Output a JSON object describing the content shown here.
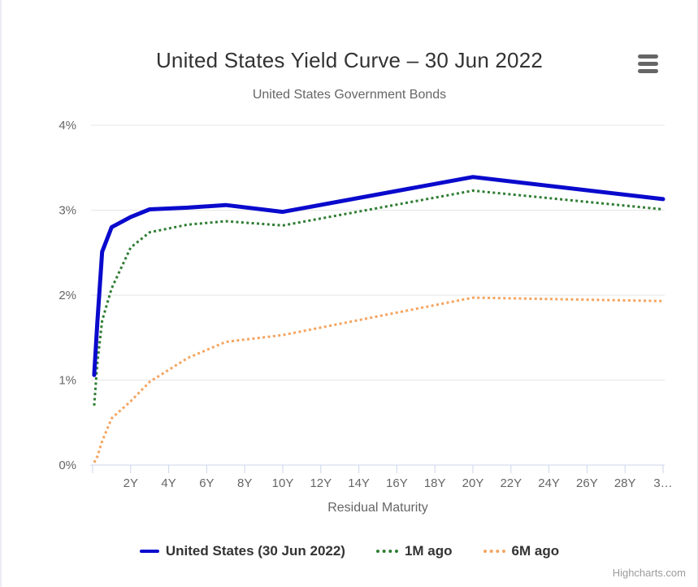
{
  "header": {
    "title": "United States Yield Curve – 30 Jun 2022",
    "subtitle": "United States Government Bonds"
  },
  "menu": {
    "icon": "hamburger-menu-icon"
  },
  "page": {
    "credits": "Highcharts.com"
  },
  "chart_data": {
    "type": "line",
    "title": "United States Yield Curve – 30 Jun 2022",
    "subtitle": "United States Government Bonds",
    "xlabel": "Residual Maturity",
    "ylabel": "",
    "xlim": [
      0,
      30.2
    ],
    "ylim": [
      0,
      4
    ],
    "grid": true,
    "legend_position": "bottom",
    "x_ticks": [
      0,
      2,
      4,
      6,
      8,
      10,
      12,
      14,
      16,
      18,
      20,
      22,
      24,
      26,
      28,
      30
    ],
    "x_tick_labels": [
      "",
      "2Y",
      "4Y",
      "6Y",
      "8Y",
      "10Y",
      "12Y",
      "14Y",
      "16Y",
      "18Y",
      "20Y",
      "22Y",
      "24Y",
      "26Y",
      "28Y",
      "3…"
    ],
    "y_ticks": [
      0,
      1,
      2,
      3,
      4
    ],
    "y_tick_labels": [
      "0%",
      "1%",
      "2%",
      "3%",
      "4%"
    ],
    "x_maturities_years": [
      0.083,
      0.25,
      0.5,
      1,
      2,
      3,
      5,
      7,
      10,
      20,
      30
    ],
    "series": [
      {
        "name": "United States (30 Jun 2022)",
        "color": "#0a0acd",
        "style": "solid",
        "width": 5,
        "values": [
          1.06,
          1.68,
          2.51,
          2.8,
          2.92,
          3.01,
          3.03,
          3.06,
          2.98,
          3.39,
          3.13
        ]
      },
      {
        "name": "1M ago",
        "color": "#2e7d32",
        "style": "dotted",
        "width": 3,
        "values": [
          0.7,
          1.2,
          1.7,
          2.08,
          2.56,
          2.74,
          2.83,
          2.87,
          2.82,
          3.23,
          3.01
        ]
      },
      {
        "name": "6M ago",
        "color": "#f4a460",
        "style": "dotted",
        "width": 3,
        "values": [
          0.03,
          0.1,
          0.28,
          0.55,
          0.75,
          0.98,
          1.26,
          1.45,
          1.53,
          1.97,
          1.93
        ]
      }
    ],
    "colors": {
      "grid": "#e6e6e6",
      "axis": "#ccd6eb",
      "tick_label": "#666666",
      "title": "#333333",
      "credits": "#9b9b9b"
    }
  }
}
